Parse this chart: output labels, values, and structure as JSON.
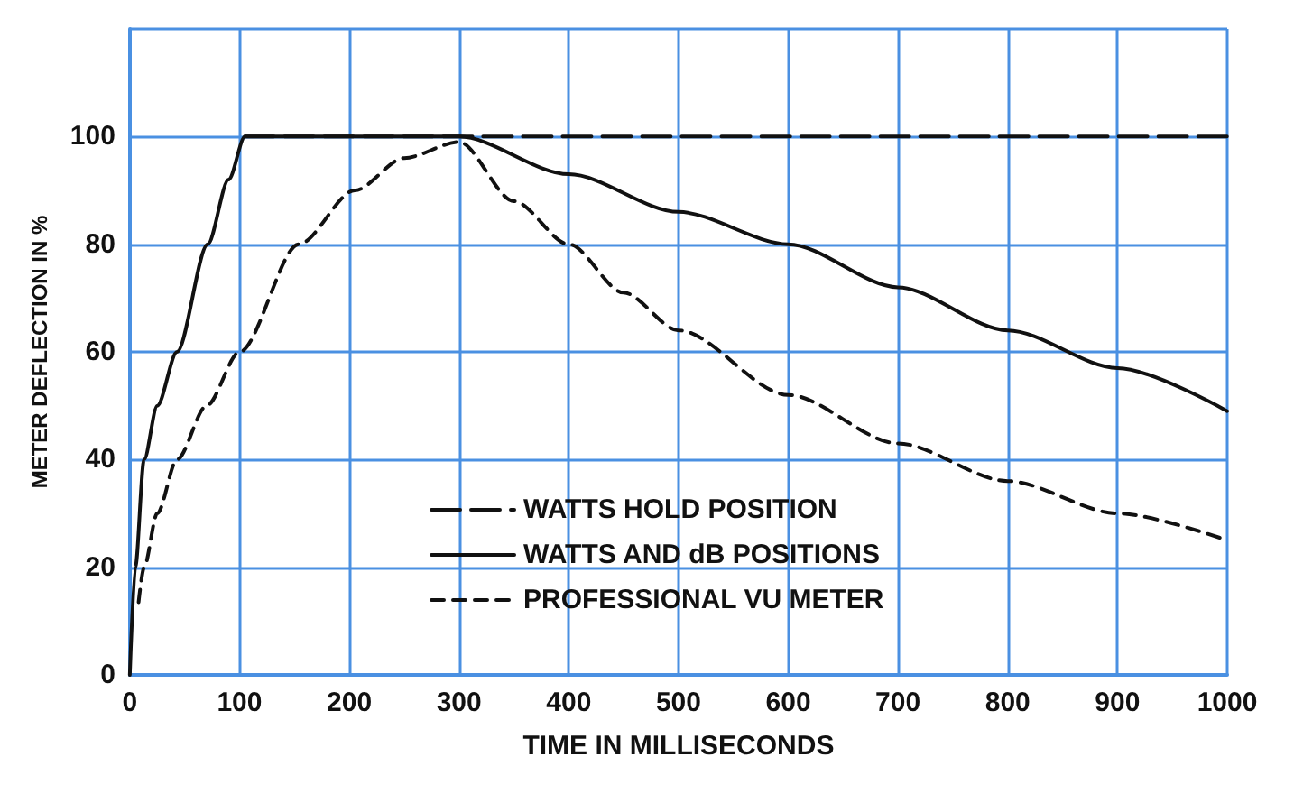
{
  "chart_data": {
    "type": "line",
    "xlabel": "TIME IN MILLISECONDS",
    "ylabel": "METER DEFLECTION IN %",
    "xlim": [
      0,
      1000
    ],
    "xticks": [
      0,
      100,
      200,
      300,
      400,
      500,
      600,
      700,
      800,
      900,
      1000
    ],
    "ylim": [
      0,
      120
    ],
    "yticks": [
      0,
      20,
      40,
      60,
      80,
      100,
      {
        "value": 120,
        "label": null
      }
    ],
    "grid": true,
    "legend": "bottom",
    "marker": "none",
    "series": [
      {
        "name": "WATTS HOLD POSITION",
        "color": "#111111",
        "line_style": "dashed",
        "x": [
          105,
          1000
        ],
        "values": [
          100,
          100
        ]
      },
      {
        "name": "WATTS AND dB POSITIONS",
        "color": "#111111",
        "line_style": "solid",
        "x": [
          0,
          5,
          13,
          25,
          43,
          71,
          90,
          105,
          300,
          400,
          500,
          600,
          700,
          800,
          900,
          1000
        ],
        "values": [
          0,
          20,
          40,
          50,
          60,
          80,
          92,
          100,
          100,
          93,
          86,
          80,
          72,
          64,
          57,
          49
        ]
      },
      {
        "name": "PROFESSIONAL VU METER",
        "color": "#111111",
        "line_style": "dashed",
        "x": [
          8,
          13,
          25,
          43,
          70,
          100,
          154,
          205,
          250,
          300,
          350,
          400,
          450,
          500,
          600,
          700,
          800,
          900,
          1000
        ],
        "values": [
          13.5,
          20,
          30,
          40,
          50,
          60,
          80,
          90,
          96,
          99,
          88,
          80,
          71,
          64,
          52,
          43,
          36,
          30,
          25
        ]
      }
    ]
  }
}
